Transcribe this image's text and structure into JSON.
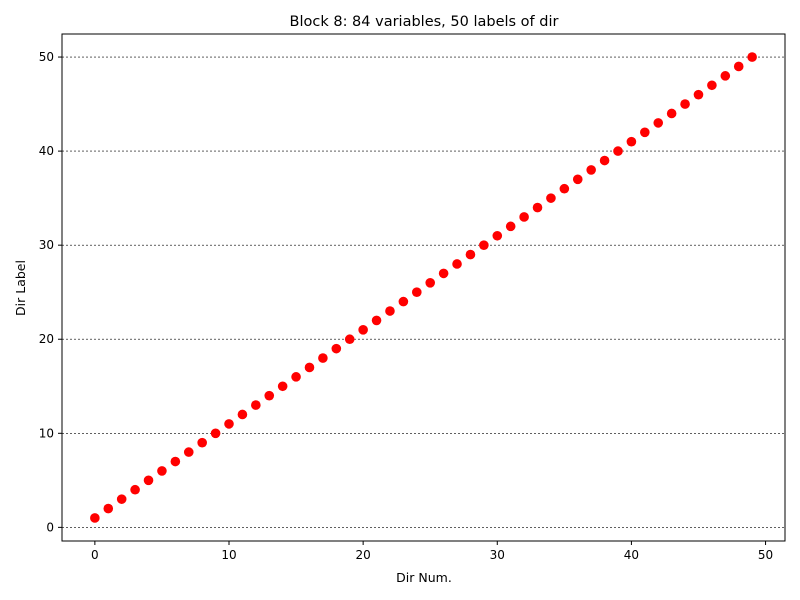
{
  "chart_data": {
    "type": "scatter",
    "title": "Block 8: 84 variables, 50 labels of dir",
    "xlabel": "Dir Num.",
    "ylabel": "Dir Label",
    "xlim": [
      -2.45,
      51.45
    ],
    "ylim": [
      -1.45,
      52.45
    ],
    "xticks": [
      0,
      10,
      20,
      30,
      40,
      50
    ],
    "yticks": [
      0,
      10,
      20,
      30,
      40,
      50
    ],
    "grid": "horizontal-dashed",
    "marker_color": "#ff0000",
    "x": [
      0,
      1,
      2,
      3,
      4,
      5,
      6,
      7,
      8,
      9,
      10,
      11,
      12,
      13,
      14,
      15,
      16,
      17,
      18,
      19,
      20,
      21,
      22,
      23,
      24,
      25,
      26,
      27,
      28,
      29,
      30,
      31,
      32,
      33,
      34,
      35,
      36,
      37,
      38,
      39,
      40,
      41,
      42,
      43,
      44,
      45,
      46,
      47,
      48,
      49
    ],
    "y": [
      1,
      2,
      3,
      4,
      5,
      6,
      7,
      8,
      9,
      10,
      11,
      12,
      13,
      14,
      15,
      16,
      17,
      18,
      19,
      20,
      21,
      22,
      23,
      24,
      25,
      26,
      27,
      28,
      29,
      30,
      31,
      32,
      33,
      34,
      35,
      36,
      37,
      38,
      39,
      40,
      41,
      42,
      43,
      44,
      45,
      46,
      47,
      48,
      49,
      50
    ]
  }
}
